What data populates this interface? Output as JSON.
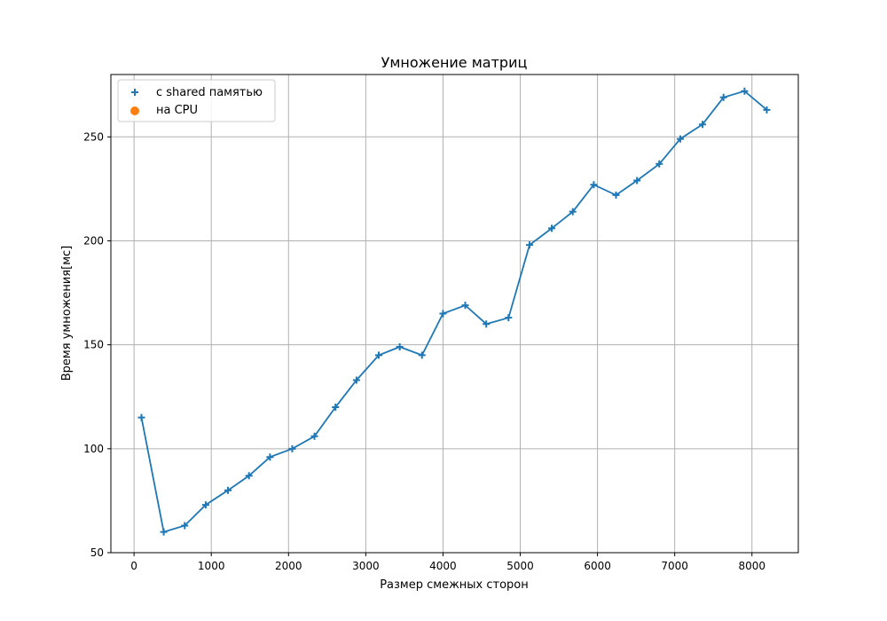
{
  "chart_data": {
    "type": "line",
    "title": "Умножение матриц",
    "xlabel": "Размер смежных сторон",
    "ylabel": "Время умножения[мс]",
    "xlim": [
      -300,
      8600
    ],
    "ylim": [
      50,
      280
    ],
    "xticks": [
      0,
      1000,
      2000,
      3000,
      4000,
      5000,
      6000,
      7000,
      8000
    ],
    "yticks": [
      50,
      100,
      150,
      200,
      250
    ],
    "grid": true,
    "legend_position": "top-left",
    "series": [
      {
        "name": "с shared памятью",
        "color": "#1f77b4",
        "marker": "plus",
        "line": true,
        "x": [
          96,
          384,
          656,
          928,
          1216,
          1488,
          1760,
          2048,
          2336,
          2608,
          2880,
          3168,
          3440,
          3728,
          4000,
          4288,
          4560,
          4848,
          5120,
          5408,
          5680,
          5952,
          6240,
          6512,
          6800,
          7072,
          7360,
          7632,
          7904,
          8192
        ],
        "values": [
          115,
          60,
          63,
          73,
          80,
          87,
          96,
          100,
          106,
          120,
          133,
          145,
          149,
          145,
          165,
          169,
          160,
          163,
          198,
          206,
          214,
          227,
          222,
          229,
          237,
          249,
          256,
          269,
          272,
          263
        ]
      },
      {
        "name": "на CPU",
        "color": "#ff7f0e",
        "marker": "circle",
        "line": false,
        "x": [],
        "values": []
      }
    ]
  }
}
